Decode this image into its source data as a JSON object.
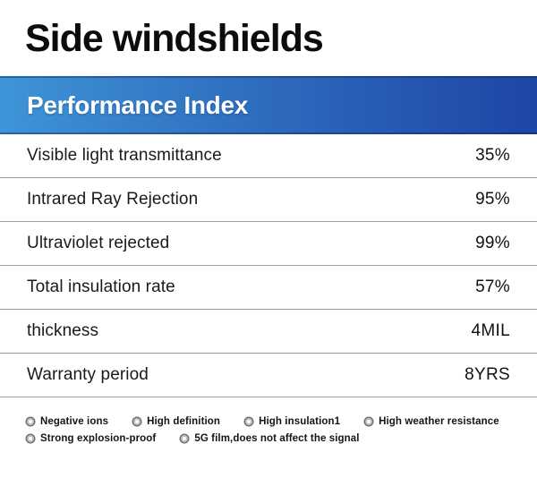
{
  "title": "Side windshields",
  "banner": {
    "title": "Performance Index",
    "gradient_start": "#3f94d7",
    "gradient_end": "#1e45a6"
  },
  "table": {
    "rows": [
      {
        "label": "Visible light transmittance",
        "value": "35%"
      },
      {
        "label": "Intrared Ray Rejection",
        "value": "95%"
      },
      {
        "label": "Ultraviolet rejected",
        "value": "99%"
      },
      {
        "label": "Total insulation rate",
        "value": "57%"
      },
      {
        "label": "thickness",
        "value": "4MIL"
      },
      {
        "label": "Warranty period",
        "value": "8YRS"
      }
    ]
  },
  "features": {
    "icon": "ring-icon",
    "rows": [
      [
        "Negative ions",
        "High definition",
        "High insulation1",
        "High weather resistance"
      ],
      [
        "Strong explosion-proof",
        "5G film,does not affect the signal"
      ]
    ]
  }
}
